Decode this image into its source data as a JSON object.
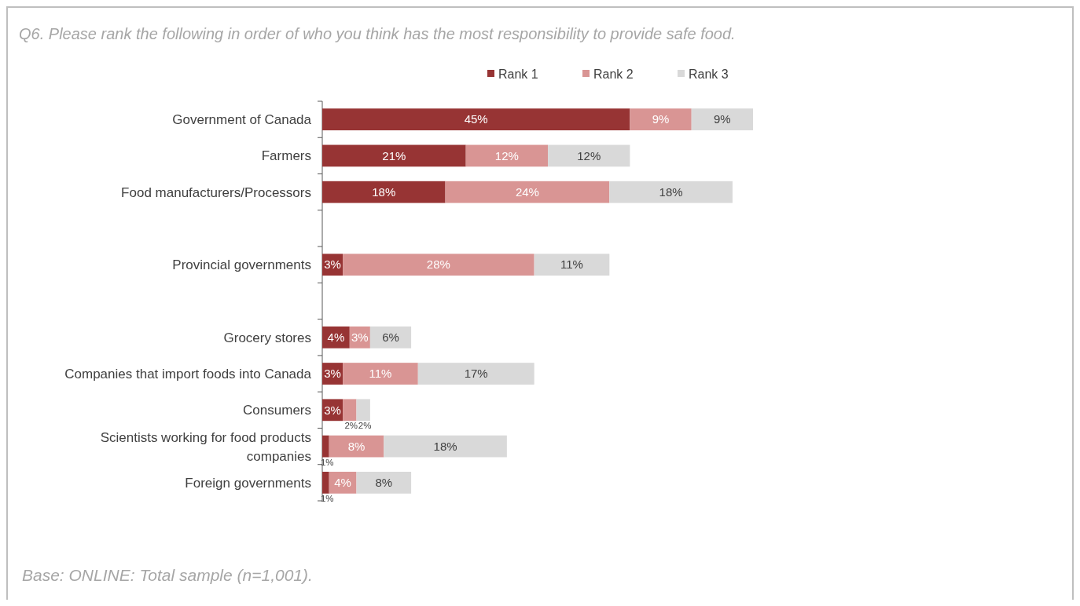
{
  "chart_data": {
    "type": "bar",
    "orientation": "horizontal",
    "stacked": true,
    "title": "Q6.  Please rank the following in order of who you think has the most responsibility to provide safe food.",
    "categories": [
      "Government of Canada",
      "Farmers",
      "Food manufacturers/Processors",
      null,
      "Provincial governments",
      null,
      "Grocery stores",
      "Companies that import foods into Canada",
      "Consumers",
      "Scientists working for food products companies",
      "Foreign governments"
    ],
    "series": [
      {
        "name": "Rank 1",
        "color": "#973434",
        "values": [
          45,
          21,
          18,
          null,
          3,
          null,
          4,
          3,
          3,
          1,
          1
        ],
        "value_labels": [
          "45%",
          "21%",
          "18%",
          null,
          "3%",
          null,
          "4%",
          "3%",
          "3%",
          "1%",
          "1%"
        ]
      },
      {
        "name": "Rank 2",
        "color": "#d99594",
        "values": [
          9,
          12,
          24,
          null,
          28,
          null,
          3,
          11,
          2,
          8,
          4
        ],
        "value_labels": [
          "9%",
          "12%",
          "24%",
          null,
          "28%",
          null,
          "3%",
          "11%",
          "2%",
          "8%",
          "4%"
        ]
      },
      {
        "name": "Rank 3",
        "color": "#d9d9d9",
        "values": [
          9,
          12,
          18,
          null,
          11,
          null,
          6,
          17,
          2,
          18,
          8
        ],
        "value_labels": [
          "9%",
          "12%",
          "18%",
          null,
          "11%",
          null,
          "6%",
          "17%",
          "2%",
          "18%",
          "8%"
        ]
      }
    ],
    "legend": "top",
    "annotations": [
      "Base:  ONLINE:  Total sample (n=1,001)."
    ]
  }
}
